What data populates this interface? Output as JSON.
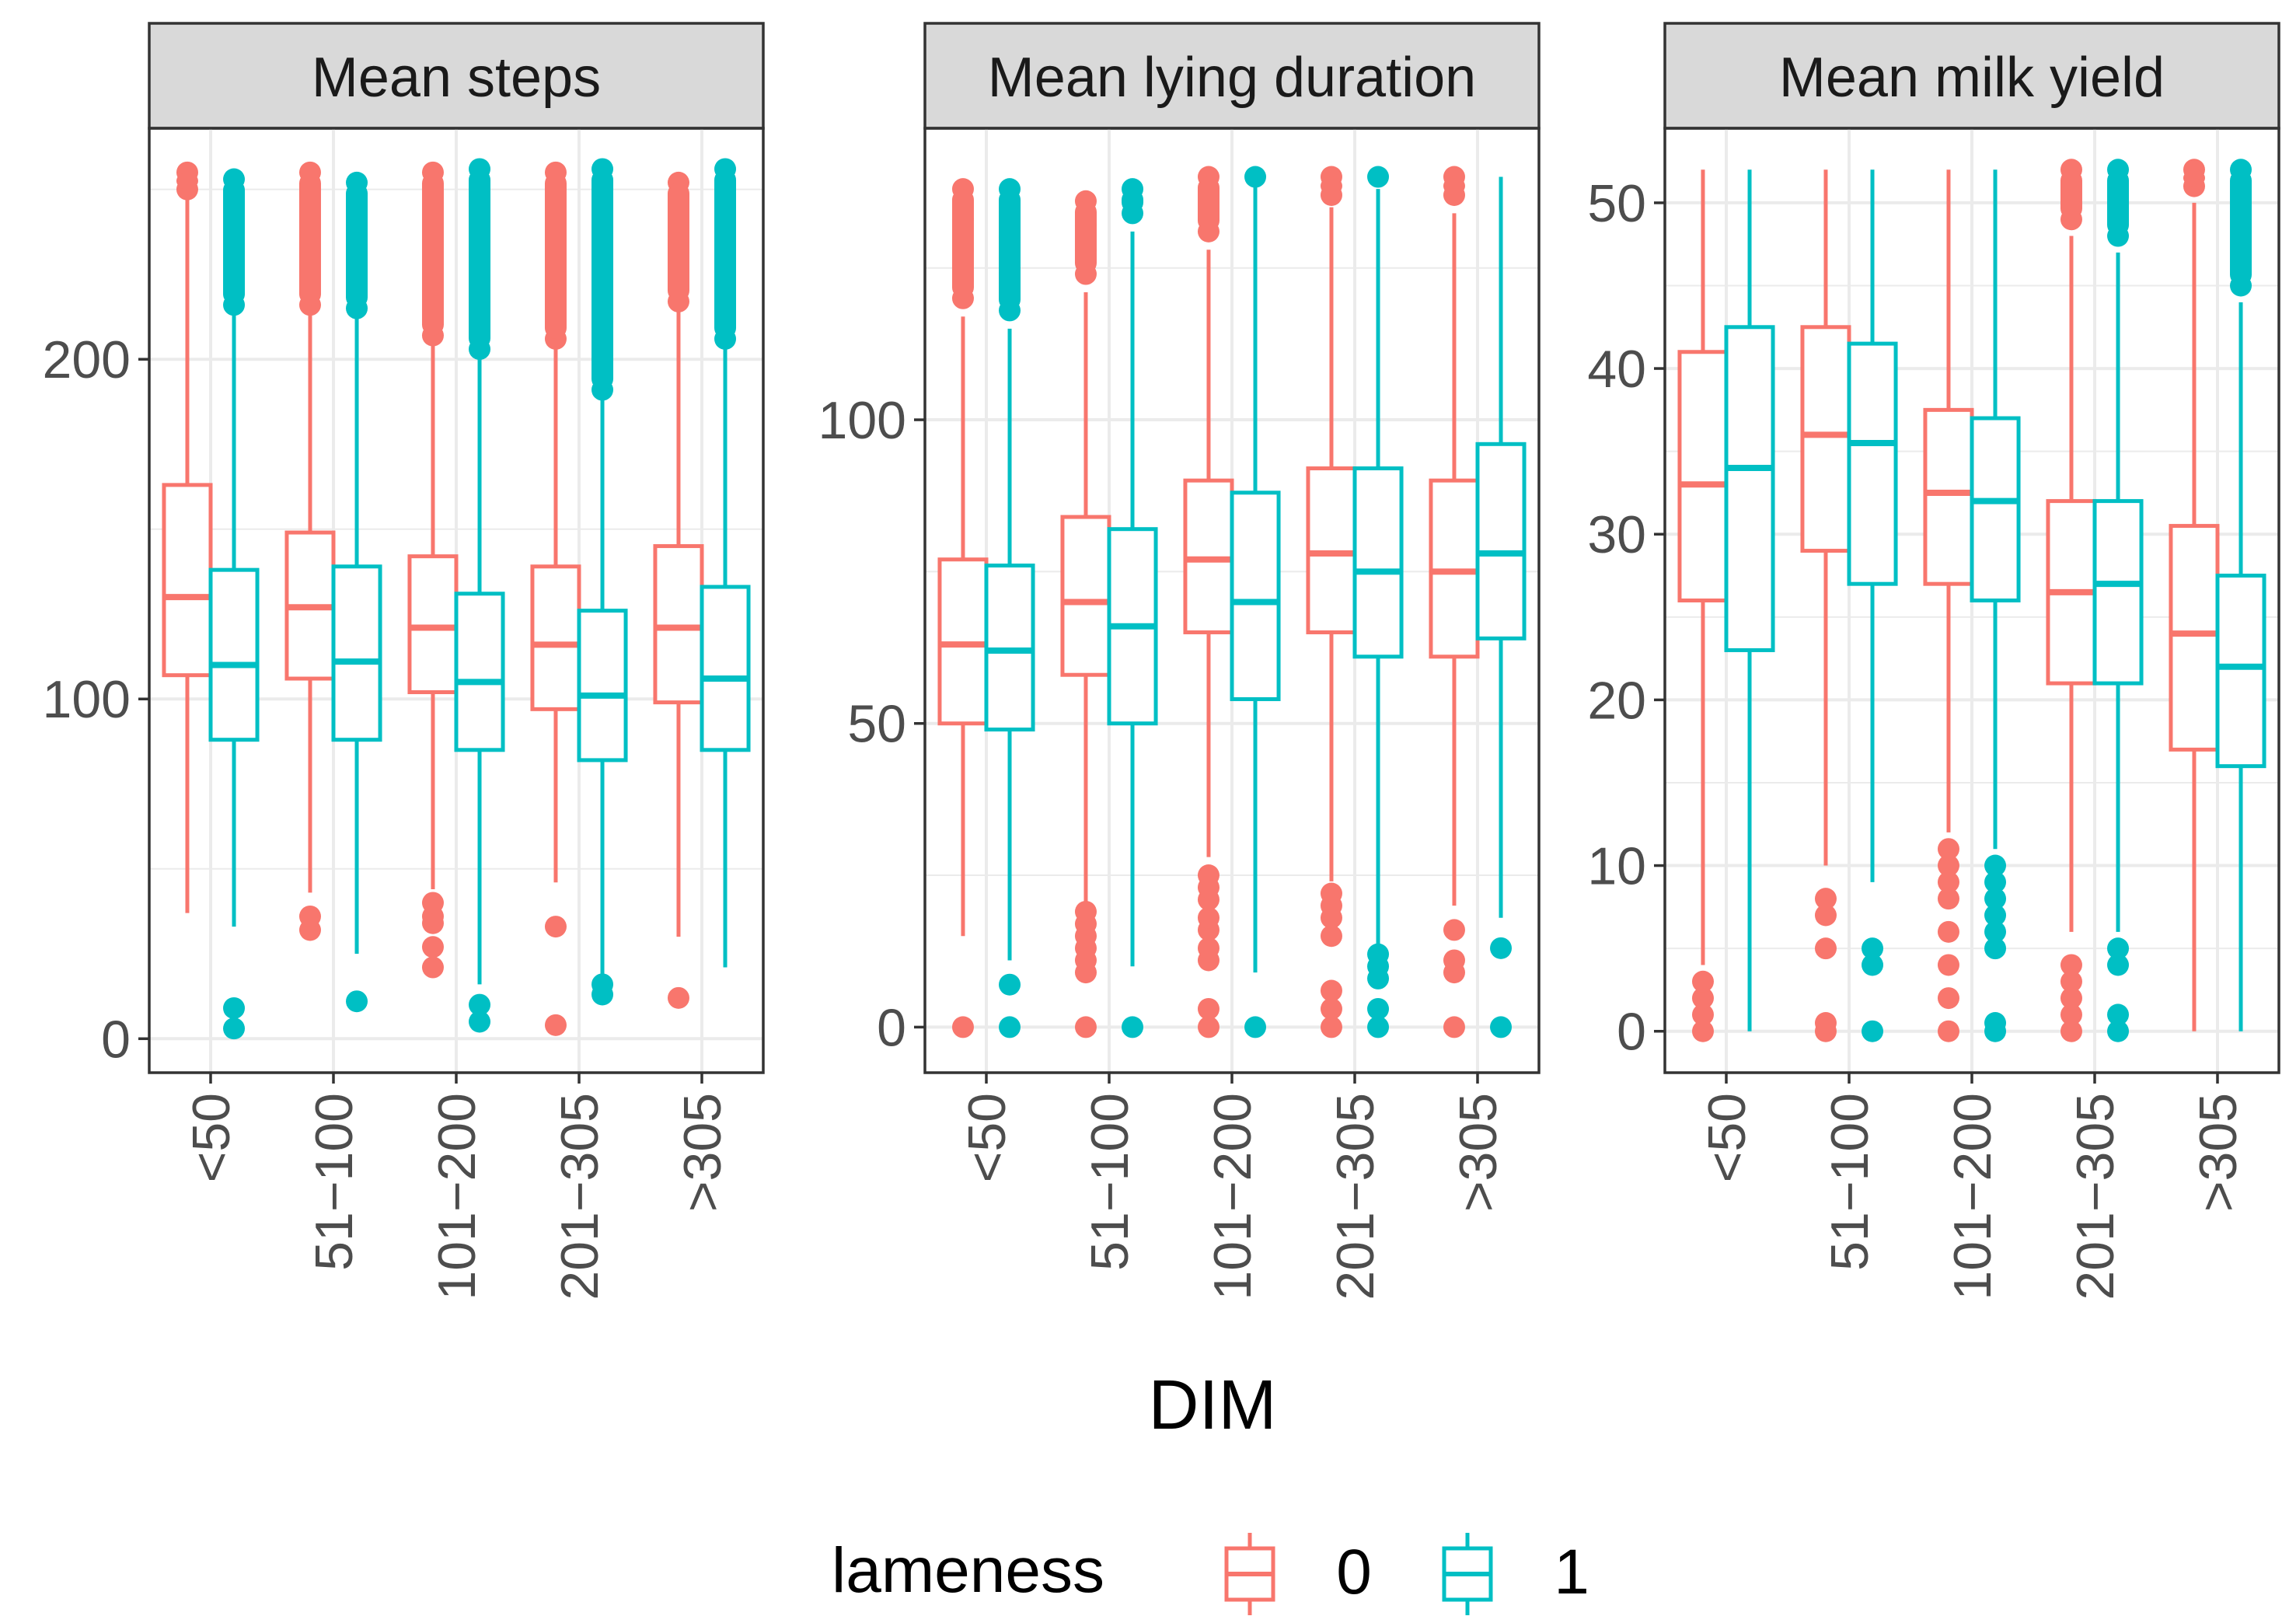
{
  "chart_data": {
    "type": "boxplot",
    "x_axis_title": "DIM",
    "categories": [
      "<50",
      "51−100",
      "101−200",
      "201−305",
      ">305"
    ],
    "legend": {
      "title": "lameness",
      "position": "bottom",
      "entries": [
        {
          "label": "0",
          "color": "#F8766D"
        },
        {
          "label": "1",
          "color": "#00BFC4"
        }
      ]
    },
    "panels": [
      {
        "title": "Mean steps",
        "ylim": [
          -10,
          268
        ],
        "y_ticks": [
          0,
          100,
          200
        ],
        "y_minor": [
          50,
          150,
          250
        ],
        "series": [
          {
            "lameness": "0",
            "boxes": [
              {
                "q1": 107,
                "median": 130,
                "q3": 163,
                "lower": 37,
                "upper": 247,
                "outliers_low": [],
                "outliers_high": [
                  250,
                  255
                ]
              },
              {
                "q1": 106,
                "median": 127,
                "q3": 149,
                "lower": 43,
                "upper": 213,
                "outliers_low": [
                  32,
                  36
                ],
                "outliers_high": [
                  216,
                  255
                ]
              },
              {
                "q1": 102,
                "median": 121,
                "q3": 142,
                "lower": 44,
                "upper": 204,
                "outliers_low": [
                  21,
                  27,
                  34,
                  36,
                  40
                ],
                "outliers_high": [
                  207,
                  255
                ]
              },
              {
                "q1": 97,
                "median": 116,
                "q3": 139,
                "lower": 46,
                "upper": 203,
                "outliers_low": [
                  4,
                  33
                ],
                "outliers_high": [
                  206,
                  255
                ]
              },
              {
                "q1": 99,
                "median": 121,
                "q3": 145,
                "lower": 30,
                "upper": 214,
                "outliers_low": [
                  12
                ],
                "outliers_high": [
                  217,
                  252
                ]
              }
            ]
          },
          {
            "lameness": "1",
            "boxes": [
              {
                "q1": 88,
                "median": 110,
                "q3": 138,
                "lower": 33,
                "upper": 213,
                "outliers_low": [
                  3,
                  9
                ],
                "outliers_high": [
                  216,
                  253
                ]
              },
              {
                "q1": 88,
                "median": 111,
                "q3": 139,
                "lower": 25,
                "upper": 212,
                "outliers_low": [
                  11
                ],
                "outliers_high": [
                  215,
                  252
                ]
              },
              {
                "q1": 85,
                "median": 105,
                "q3": 131,
                "lower": 16,
                "upper": 200,
                "outliers_low": [
                  5,
                  10
                ],
                "outliers_high": [
                  203,
                  256
                ]
              },
              {
                "q1": 82,
                "median": 101,
                "q3": 126,
                "lower": 18,
                "upper": 188,
                "outliers_low": [
                  13,
                  16
                ],
                "outliers_high": [
                  191,
                  256
                ]
              },
              {
                "q1": 85,
                "median": 106,
                "q3": 133,
                "lower": 21,
                "upper": 203,
                "outliers_low": [],
                "outliers_high": [
                  206,
                  256
                ]
              }
            ]
          }
        ]
      },
      {
        "title": "Mean lying duration",
        "ylim": [
          -7.5,
          148
        ],
        "y_ticks": [
          0,
          50,
          100
        ],
        "y_minor": [
          25,
          75,
          125
        ],
        "series": [
          {
            "lameness": "0",
            "boxes": [
              {
                "q1": 50,
                "median": 63,
                "q3": 77,
                "lower": 15,
                "upper": 117,
                "outliers_low": [
                  0
                ],
                "outliers_high": [
                  120,
                  123,
                  128,
                  133,
                  138
                ]
              },
              {
                "q1": 58,
                "median": 70,
                "q3": 84,
                "lower": 20,
                "upper": 121,
                "outliers_low": [
                  0,
                  9,
                  11,
                  13,
                  15,
                  17,
                  19
                ],
                "outliers_high": [
                  124,
                  128,
                  132,
                  136
                ]
              },
              {
                "q1": 65,
                "median": 77,
                "q3": 90,
                "lower": 28,
                "upper": 128,
                "outliers_low": [
                  0,
                  3,
                  11,
                  13,
                  16,
                  18,
                  21,
                  23,
                  25
                ],
                "outliers_high": [
                  131,
                  140
                ]
              },
              {
                "q1": 65,
                "median": 78,
                "q3": 92,
                "lower": 24,
                "upper": 135,
                "outliers_low": [
                  0,
                  3,
                  6,
                  15,
                  18,
                  20,
                  22
                ],
                "outliers_high": [
                  137,
                  140
                ]
              },
              {
                "q1": 61,
                "median": 75,
                "q3": 90,
                "lower": 20,
                "upper": 134,
                "outliers_low": [
                  0,
                  9,
                  11,
                  16
                ],
                "outliers_high": [
                  137,
                  140
                ]
              }
            ]
          },
          {
            "lameness": "1",
            "boxes": [
              {
                "q1": 49,
                "median": 62,
                "q3": 76,
                "lower": 11,
                "upper": 115,
                "outliers_low": [
                  0,
                  7
                ],
                "outliers_high": [
                  118,
                  124,
                  130,
                  138
                ]
              },
              {
                "q1": 50,
                "median": 66,
                "q3": 82,
                "lower": 10,
                "upper": 131,
                "outliers_low": [
                  0
                ],
                "outliers_high": [
                  134,
                  138
                ]
              },
              {
                "q1": 54,
                "median": 70,
                "q3": 88,
                "lower": 9,
                "upper": 139,
                "outliers_low": [
                  0
                ],
                "outliers_high": [
                  140
                ]
              },
              {
                "q1": 61,
                "median": 75,
                "q3": 92,
                "lower": 13,
                "upper": 138,
                "outliers_low": [
                  0,
                  3,
                  8,
                  10,
                  12
                ],
                "outliers_high": [
                  140
                ]
              },
              {
                "q1": 64,
                "median": 78,
                "q3": 96,
                "lower": 18,
                "upper": 140,
                "outliers_low": [
                  0,
                  13
                ],
                "outliers_high": []
              }
            ]
          }
        ]
      },
      {
        "title": "Mean milk yield",
        "ylim": [
          -2.5,
          54.5
        ],
        "y_ticks": [
          0,
          10,
          20,
          30,
          40,
          50
        ],
        "y_minor": [
          5,
          15,
          25,
          35,
          45
        ],
        "series": [
          {
            "lameness": "0",
            "boxes": [
              {
                "q1": 26,
                "median": 33,
                "q3": 41,
                "lower": 4,
                "upper": 52,
                "outliers_low": [
                  0,
                  1,
                  2,
                  3
                ],
                "outliers_high": []
              },
              {
                "q1": 29,
                "median": 36,
                "q3": 42.5,
                "lower": 10,
                "upper": 52,
                "outliers_low": [
                  0,
                  0.5,
                  5,
                  7,
                  8
                ],
                "outliers_high": []
              },
              {
                "q1": 27,
                "median": 32.5,
                "q3": 37.5,
                "lower": 12,
                "upper": 52,
                "outliers_low": [
                  0,
                  2,
                  4,
                  6,
                  8,
                  9,
                  10,
                  11
                ],
                "outliers_high": []
              },
              {
                "q1": 21,
                "median": 26.5,
                "q3": 32,
                "lower": 6,
                "upper": 48,
                "outliers_low": [
                  0,
                  1,
                  2,
                  3,
                  4
                ],
                "outliers_high": [
                  49,
                  52
                ]
              },
              {
                "q1": 17,
                "median": 24,
                "q3": 30.5,
                "lower": 0,
                "upper": 50,
                "outliers_low": [],
                "outliers_high": [
                  51,
                  52
                ]
              }
            ]
          },
          {
            "lameness": "1",
            "boxes": [
              {
                "q1": 23,
                "median": 34,
                "q3": 42.5,
                "lower": 0,
                "upper": 52,
                "outliers_low": [],
                "outliers_high": []
              },
              {
                "q1": 27,
                "median": 35.5,
                "q3": 41.5,
                "lower": 9,
                "upper": 52,
                "outliers_low": [
                  0,
                  4,
                  5
                ],
                "outliers_high": []
              },
              {
                "q1": 26,
                "median": 32,
                "q3": 37,
                "lower": 11,
                "upper": 52,
                "outliers_low": [
                  0,
                  0.5,
                  5,
                  6,
                  7,
                  8,
                  9,
                  10
                ],
                "outliers_high": []
              },
              {
                "q1": 21,
                "median": 27,
                "q3": 32,
                "lower": 6,
                "upper": 47,
                "outliers_low": [
                  0,
                  1,
                  4,
                  5
                ],
                "outliers_high": [
                  48,
                  50,
                  52
                ]
              },
              {
                "q1": 16,
                "median": 22,
                "q3": 27.5,
                "lower": 0,
                "upper": 44,
                "outliers_low": [],
                "outliers_high": [
                  45,
                  52
                ]
              }
            ]
          }
        ]
      }
    ]
  }
}
